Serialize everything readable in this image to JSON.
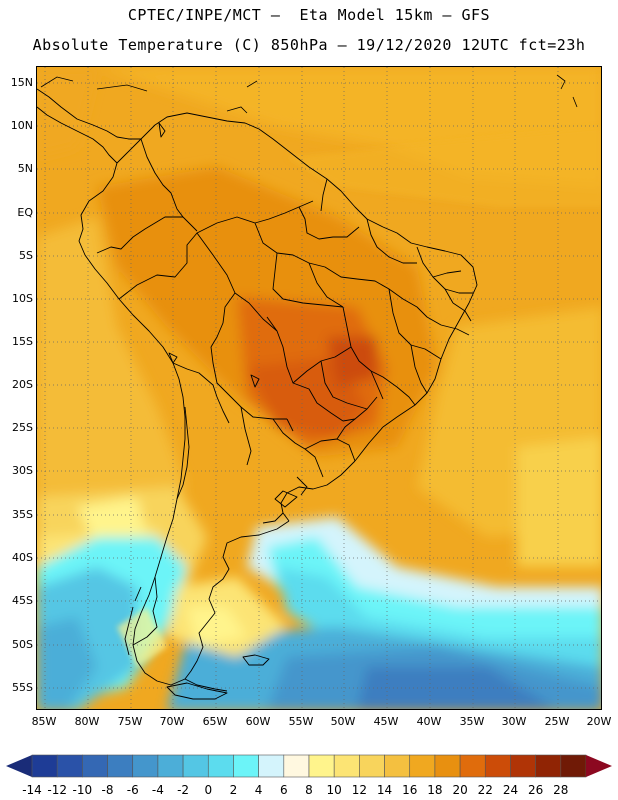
{
  "header": {
    "line1": "CPTEC/INPE/MCT –  Eta Model 15km – GFS",
    "line2": "Absolute Temperature (C) 850hPa – 19/12/2020 12UTC fct=23h"
  },
  "map": {
    "lat_labels": [
      "15N",
      "10N",
      "5N",
      "EQ",
      "5S",
      "10S",
      "15S",
      "20S",
      "25S",
      "30S",
      "35S",
      "40S",
      "45S",
      "50S",
      "55S"
    ],
    "lon_labels": [
      "85W",
      "80W",
      "75W",
      "70W",
      "65W",
      "60W",
      "55W",
      "50W",
      "45W",
      "40W",
      "35W",
      "30W",
      "25W",
      "20W"
    ]
  },
  "colorbar": {
    "labels": [
      "-14",
      "-12",
      "-10",
      "-8",
      "-6",
      "-4",
      "-2",
      "0",
      "2",
      "4",
      "6",
      "8",
      "10",
      "12",
      "14",
      "16",
      "18",
      "20",
      "22",
      "24",
      "26",
      "28"
    ],
    "colors": [
      "#1e3c96",
      "#2a52a8",
      "#3468b4",
      "#3c7ec0",
      "#4496cc",
      "#4caed8",
      "#54c6e4",
      "#5cdcee",
      "#6cf4f8",
      "#d4f4fc",
      "#fff8e0",
      "#fff48c",
      "#fce474",
      "#f8d45c",
      "#f4c040",
      "#f0a820",
      "#e89010",
      "#e06c0c",
      "#cc4c08",
      "#b03406",
      "#902404",
      "#701a06"
    ],
    "under_color": "#1a2c78",
    "over_color": "#8c0820"
  }
}
